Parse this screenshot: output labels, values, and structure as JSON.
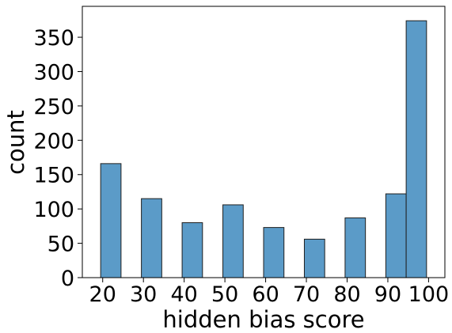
{
  "chart_data": {
    "type": "bar",
    "subtype": "histogram",
    "xlabel": "hidden bias score",
    "ylabel": "count",
    "xlim": [
      15,
      104
    ],
    "ylim": [
      0,
      395
    ],
    "xticks": [
      20,
      30,
      40,
      50,
      60,
      70,
      80,
      90,
      100
    ],
    "yticks": [
      0,
      50,
      100,
      150,
      200,
      250,
      300,
      350
    ],
    "bars": [
      {
        "x0": 19.5,
        "x1": 24.5,
        "value": 166
      },
      {
        "x0": 29.5,
        "x1": 34.5,
        "value": 115
      },
      {
        "x0": 39.5,
        "x1": 44.5,
        "value": 80
      },
      {
        "x0": 49.5,
        "x1": 54.5,
        "value": 106
      },
      {
        "x0": 59.5,
        "x1": 64.5,
        "value": 73
      },
      {
        "x0": 69.5,
        "x1": 74.5,
        "value": 56
      },
      {
        "x0": 79.5,
        "x1": 84.5,
        "value": 87
      },
      {
        "x0": 89.5,
        "x1": 94.5,
        "value": 122
      },
      {
        "x0": 94.5,
        "x1": 99.5,
        "value": 374
      }
    ],
    "bar_color": "#5b9bc8",
    "edge_color": "#1f1f1f",
    "grid": false,
    "legend": "none"
  }
}
